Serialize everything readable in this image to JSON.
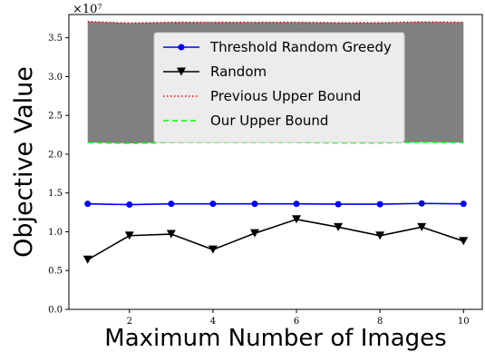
{
  "chart_data": {
    "type": "line",
    "xlabel": "Maximum Number of Images",
    "ylabel": "Objective Value",
    "y_scale_label": "×10⁷",
    "x": [
      1,
      2,
      3,
      4,
      5,
      6,
      7,
      8,
      9,
      10
    ],
    "xlim": [
      0.55,
      10.45
    ],
    "ylim": [
      0,
      3.8
    ],
    "x_ticks": [
      2,
      4,
      6,
      8,
      10
    ],
    "y_ticks": [
      0.0,
      0.5,
      1.0,
      1.5,
      2.0,
      2.5,
      3.0,
      3.5
    ],
    "y_tick_labels": [
      "0.0",
      "0.5",
      "1.0",
      "1.5",
      "2.0",
      "2.5",
      "3.0",
      "3.5"
    ],
    "grid": false,
    "legend_position": "top-center",
    "fill_between": {
      "lower": "Our Upper Bound",
      "upper": "Previous Upper Bound",
      "color": "#808080"
    },
    "series": [
      {
        "name": "Threshold Random Greedy",
        "color": "#0000ff",
        "linestyle": "solid",
        "marker": "circle",
        "values": [
          1.36,
          1.35,
          1.36,
          1.36,
          1.36,
          1.36,
          1.355,
          1.355,
          1.365,
          1.36
        ]
      },
      {
        "name": "Random",
        "color": "#000000",
        "linestyle": "solid",
        "marker": "triangle-down",
        "values": [
          0.64,
          0.95,
          0.97,
          0.77,
          0.98,
          1.16,
          1.06,
          0.95,
          1.06,
          0.88
        ]
      },
      {
        "name": "Previous Upper Bound",
        "color": "#ff0000",
        "linestyle": "dotted",
        "marker": "none",
        "values": [
          3.71,
          3.69,
          3.7,
          3.7,
          3.7,
          3.7,
          3.695,
          3.695,
          3.705,
          3.7
        ]
      },
      {
        "name": "Our Upper Bound",
        "color": "#00ff00",
        "linestyle": "dashed",
        "marker": "none",
        "values": [
          2.15,
          2.14,
          2.15,
          2.15,
          2.15,
          2.15,
          2.145,
          2.145,
          2.155,
          2.15
        ]
      }
    ]
  }
}
